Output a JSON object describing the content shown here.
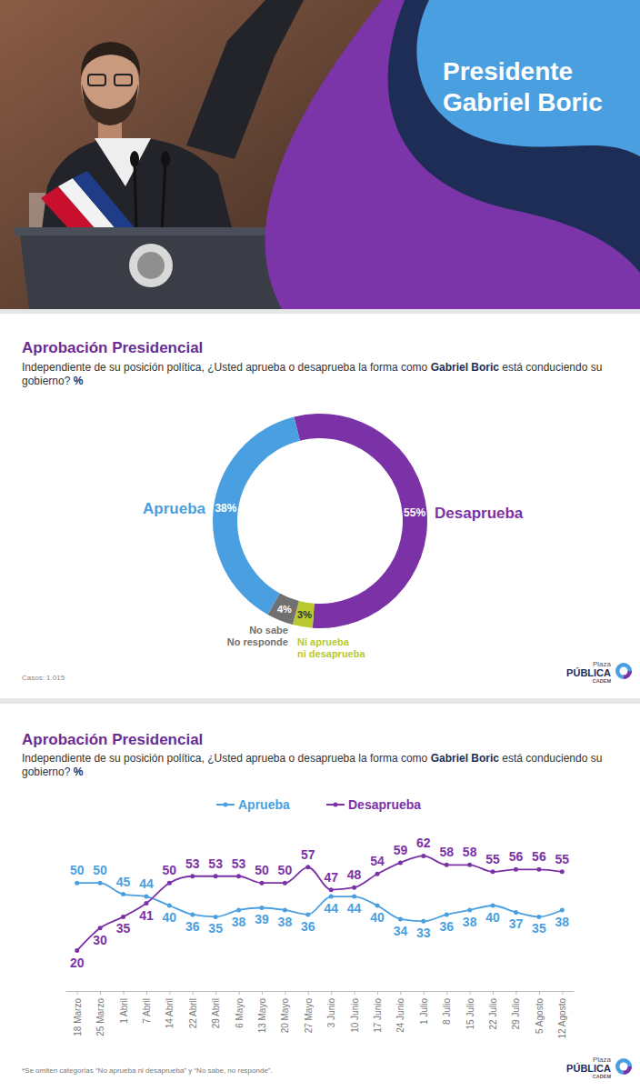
{
  "header": {
    "title": "Presidente Gabriel Boric"
  },
  "logo": {
    "lines": [
      "Plaza",
      "PÚBLICA",
      "CADEM"
    ]
  },
  "chart_data": [
    {
      "type": "donut",
      "title": "Aprobación Presidencial",
      "subtitle": [
        "Independiente de su posición política, ¿Usted aprueba o desaprueba la forma como ",
        "Gabriel Boric",
        " está conduciendo su gobierno? ",
        "%"
      ],
      "categories": [
        "Desaprueba",
        "Ni aprueba ni desaprueba",
        "No sabe No responde",
        "Aprueba"
      ],
      "values": [
        55,
        3,
        4,
        38
      ],
      "value_labels": [
        "55%",
        "3%",
        "4%",
        "38%"
      ],
      "colors": [
        "#7b32a6",
        "#b8c82e",
        "#707070",
        "#4a9fe0"
      ],
      "data_labels": true,
      "annotations": [
        "Casos: 1.015"
      ]
    },
    {
      "type": "line",
      "title": "Aprobación Presidencial",
      "subtitle": [
        "Independiente de su posición política, ¿Usted aprueba o desaprueba la forma como ",
        "Gabriel Boric",
        " está conduciendo su gobierno? ",
        "%"
      ],
      "categories": [
        "18 Marzo",
        "25 Marzo",
        "1 Abril",
        "7 Abril",
        "14 Abril",
        "22 Abril",
        "29 Abril",
        "6 Mayo",
        "13 Mayo",
        "20 Mayo",
        "27 Mayo",
        "3 Junio",
        "10 Junio",
        "17 Junio",
        "24 Junio",
        "1 Julio",
        "8 Julio",
        "15 Julio",
        "22 Julio",
        "29 Julio",
        "5 Agosto",
        "12 Agosto"
      ],
      "series": [
        {
          "name": "Aprueba",
          "color": "#4a9fe0",
          "marker": "circle",
          "values": [
            50,
            50,
            45,
            44,
            40,
            36,
            35,
            38,
            39,
            38,
            36,
            44,
            44,
            40,
            34,
            33,
            36,
            38,
            40,
            37,
            35,
            38
          ]
        },
        {
          "name": "Desaprueba",
          "color": "#7b32a6",
          "marker": "circle",
          "values": [
            20,
            30,
            35,
            41,
            50,
            53,
            53,
            53,
            50,
            50,
            57,
            47,
            48,
            54,
            59,
            62,
            58,
            58,
            55,
            56,
            56,
            55
          ]
        }
      ],
      "ylim": [
        15,
        65
      ],
      "tick_labels": "x",
      "data_labels": true,
      "legend": "top",
      "annotations": [
        "*Se omiten categorías “No aprueba ni desaprueba” y “No sabe, no responde”."
      ]
    }
  ]
}
